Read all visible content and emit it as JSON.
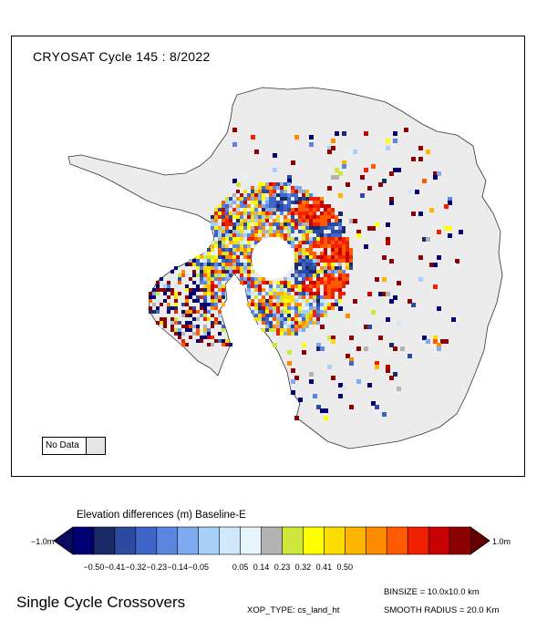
{
  "map": {
    "title": "CRYOSAT Cycle 145 : 8/2022",
    "land_color": "#ececec",
    "no_data_label": "No Data"
  },
  "legend": {
    "title": "Elevation differences (m) Baseline-E",
    "min_label": "−1.0m",
    "max_label": "1.0m",
    "ticks": [
      "−0.50",
      "−0.41",
      "−0.32",
      "−0.23",
      "−0.14",
      "−0.05",
      "0.05",
      "0.14",
      "0.23",
      "0.32",
      "0.41",
      "0.50"
    ],
    "colors": [
      "#000070",
      "#1a2a66",
      "#2c4aa0",
      "#3e66c8",
      "#5a86e0",
      "#7eaaf0",
      "#a7d0f8",
      "#cfe8fb",
      "#e6f4fc",
      "#b2b2b2",
      "#cfe63a",
      "#ffff00",
      "#ffdc00",
      "#ffb400",
      "#ff8c00",
      "#ff5a00",
      "#f02000",
      "#c80000",
      "#8c0000"
    ],
    "end_low_color": "#0a0a60",
    "end_high_color": "#640000"
  },
  "footer": {
    "title": "Single Cycle Crossovers",
    "xop_type": "XOP_TYPE: cs_land_ht",
    "binsize": "BINSIZE = 10.0x10.0 km",
    "smooth_radius": "SMOOTH RADIUS =  20.0 Km"
  }
}
